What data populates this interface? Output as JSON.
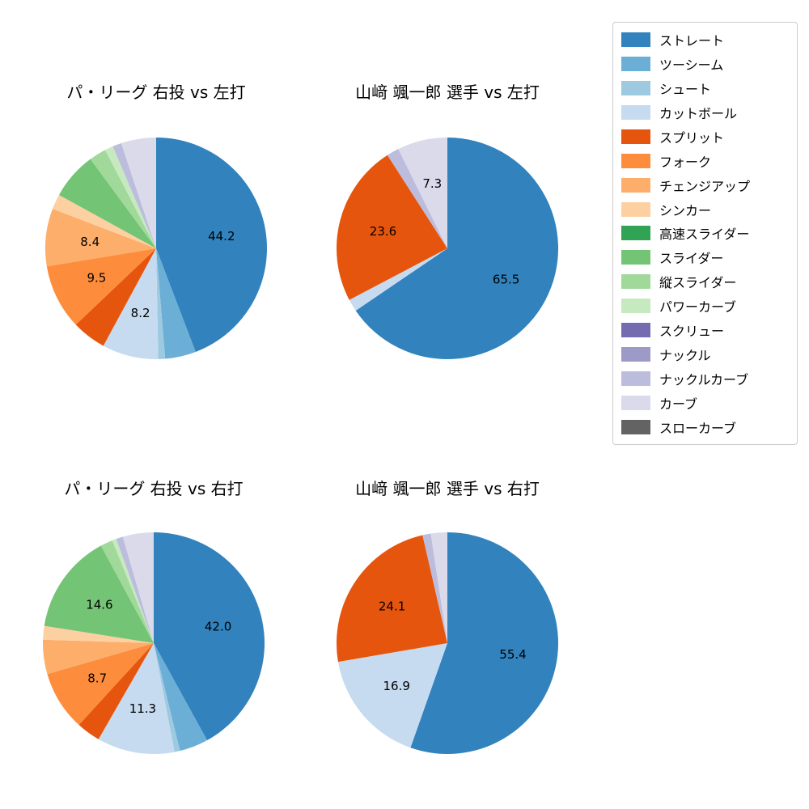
{
  "page": {
    "background": "#ffffff"
  },
  "legend": {
    "position": "top-right",
    "items": [
      {
        "label": "ストレート",
        "color": "#3182bd"
      },
      {
        "label": "ツーシーム",
        "color": "#6baed6"
      },
      {
        "label": "シュート",
        "color": "#9ecae1"
      },
      {
        "label": "カットボール",
        "color": "#c6dbef"
      },
      {
        "label": "スプリット",
        "color": "#e6550d"
      },
      {
        "label": "フォーク",
        "color": "#fd8d3c"
      },
      {
        "label": "チェンジアップ",
        "color": "#fdae6b"
      },
      {
        "label": "シンカー",
        "color": "#fdd0a2"
      },
      {
        "label": "高速スライダー",
        "color": "#31a354"
      },
      {
        "label": "スライダー",
        "color": "#74c476"
      },
      {
        "label": "縦スライダー",
        "color": "#a1d99b"
      },
      {
        "label": "パワーカーブ",
        "color": "#c7e9c0"
      },
      {
        "label": "スクリュー",
        "color": "#756bb1"
      },
      {
        "label": "ナックル",
        "color": "#9e9ac8"
      },
      {
        "label": "ナックルカーブ",
        "color": "#bcbddc"
      },
      {
        "label": "カーブ",
        "color": "#dadaeb"
      },
      {
        "label": "スローカーブ",
        "color": "#636363"
      }
    ]
  },
  "chart_data": [
    {
      "type": "pie",
      "title": "パ・リーグ 右投 vs 左打",
      "start_angle": "top",
      "direction": "clockwise",
      "radius_px": 137,
      "pct_distance": 0.6,
      "units": "percent",
      "slices": [
        {
          "name": "ストレート",
          "color": "#3182bd",
          "value": 44.2,
          "label": "44.2"
        },
        {
          "name": "ツーシーム",
          "color": "#6baed6",
          "value": 4.5,
          "label": ""
        },
        {
          "name": "シュート",
          "color": "#9ecae1",
          "value": 1.0,
          "label": ""
        },
        {
          "name": "カットボール",
          "color": "#c6dbef",
          "value": 8.2,
          "label": "8.2"
        },
        {
          "name": "スプリット",
          "color": "#e6550d",
          "value": 5.0,
          "label": ""
        },
        {
          "name": "フォーク",
          "color": "#fd8d3c",
          "value": 9.5,
          "label": "9.5"
        },
        {
          "name": "チェンジアップ",
          "color": "#fdae6b",
          "value": 8.4,
          "label": "8.4"
        },
        {
          "name": "シンカー",
          "color": "#fdd0a2",
          "value": 2.2,
          "label": ""
        },
        {
          "name": "スライダー",
          "color": "#74c476",
          "value": 6.9,
          "label": ""
        },
        {
          "name": "縦スライダー",
          "color": "#a1d99b",
          "value": 2.5,
          "label": ""
        },
        {
          "name": "パワーカーブ",
          "color": "#c7e9c0",
          "value": 1.2,
          "label": ""
        },
        {
          "name": "ナックルカーブ",
          "color": "#bcbddc",
          "value": 1.3,
          "label": ""
        },
        {
          "name": "カーブ",
          "color": "#dadaeb",
          "value": 5.1,
          "label": ""
        }
      ]
    },
    {
      "type": "pie",
      "title": "山﨑 颯一郎 選手 vs 左打",
      "start_angle": "top",
      "direction": "clockwise",
      "radius_px": 137,
      "pct_distance": 0.6,
      "units": "percent",
      "slices": [
        {
          "name": "ストレート",
          "color": "#3182bd",
          "value": 65.5,
          "label": "65.5"
        },
        {
          "name": "カットボール",
          "color": "#c6dbef",
          "value": 1.8,
          "label": ""
        },
        {
          "name": "スプリット",
          "color": "#e6550d",
          "value": 23.6,
          "label": "23.6"
        },
        {
          "name": "ナックルカーブ",
          "color": "#bcbddc",
          "value": 1.8,
          "label": ""
        },
        {
          "name": "カーブ",
          "color": "#dadaeb",
          "value": 7.3,
          "label": "7.3"
        }
      ]
    },
    {
      "type": "pie",
      "title": "パ・リーグ 右投 vs 右打",
      "start_angle": "top",
      "direction": "clockwise",
      "radius_px": 137,
      "pct_distance": 0.6,
      "units": "percent",
      "slices": [
        {
          "name": "ストレート",
          "color": "#3182bd",
          "value": 42.0,
          "label": "42.0"
        },
        {
          "name": "ツーシーム",
          "color": "#6baed6",
          "value": 4.2,
          "label": ""
        },
        {
          "name": "シュート",
          "color": "#9ecae1",
          "value": 0.8,
          "label": ""
        },
        {
          "name": "カットボール",
          "color": "#c6dbef",
          "value": 11.3,
          "label": "11.3"
        },
        {
          "name": "スプリット",
          "color": "#e6550d",
          "value": 3.5,
          "label": ""
        },
        {
          "name": "フォーク",
          "color": "#fd8d3c",
          "value": 8.7,
          "label": "8.7"
        },
        {
          "name": "チェンジアップ",
          "color": "#fdae6b",
          "value": 5.0,
          "label": ""
        },
        {
          "name": "シンカー",
          "color": "#fdd0a2",
          "value": 2.0,
          "label": ""
        },
        {
          "name": "スライダー",
          "color": "#74c476",
          "value": 14.6,
          "label": "14.6"
        },
        {
          "name": "縦スライダー",
          "color": "#a1d99b",
          "value": 1.8,
          "label": ""
        },
        {
          "name": "パワーカーブ",
          "color": "#c7e9c0",
          "value": 0.6,
          "label": ""
        },
        {
          "name": "ナックルカーブ",
          "color": "#bcbddc",
          "value": 1.0,
          "label": ""
        },
        {
          "name": "カーブ",
          "color": "#dadaeb",
          "value": 4.5,
          "label": ""
        }
      ]
    },
    {
      "type": "pie",
      "title": "山﨑 颯一郎 選手 vs 右打",
      "start_angle": "top",
      "direction": "clockwise",
      "radius_px": 137,
      "pct_distance": 0.6,
      "units": "percent",
      "slices": [
        {
          "name": "ストレート",
          "color": "#3182bd",
          "value": 55.4,
          "label": "55.4"
        },
        {
          "name": "カットボール",
          "color": "#c6dbef",
          "value": 16.9,
          "label": "16.9"
        },
        {
          "name": "スプリット",
          "color": "#e6550d",
          "value": 24.1,
          "label": "24.1"
        },
        {
          "name": "ナックルカーブ",
          "color": "#bcbddc",
          "value": 1.2,
          "label": ""
        },
        {
          "name": "カーブ",
          "color": "#dadaeb",
          "value": 2.4,
          "label": ""
        }
      ]
    }
  ]
}
